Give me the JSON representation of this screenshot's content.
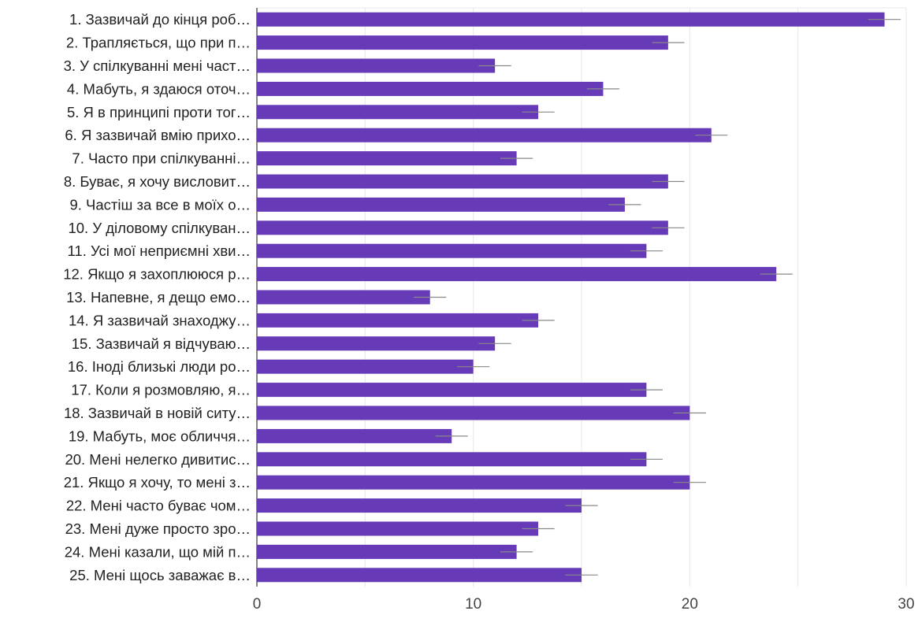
{
  "chart_data": {
    "type": "bar",
    "orientation": "horizontal",
    "categories": [
      "1. Зазвичай до кінця роб…",
      "2. Трапляється, що при п…",
      "3. У спілкуванні мені част…",
      "4. Мабуть, я здаюся оточ…",
      "5. Я в принципі проти тог…",
      "6. Я зазвичай вмію прихо…",
      "7. Часто при спілкуванні…",
      "8. Буває, я хочу висловит…",
      "9. Частіш за все в моїх о…",
      "10. У діловому спілкуван…",
      "11. Усі мої неприємні хви…",
      "12. Якщо я захоплююся р…",
      "13. Напевне, я дещо емо…",
      "14. Я зазвичай знаходжу…",
      "15. Зазвичай я відчуваю…",
      "16. Іноді близькі люди ро…",
      "17. Коли я розмовляю, я…",
      "18. Зазвичай в новій ситу…",
      "19. Мабуть, моє обличчя…",
      "20. Мені нелегко дивитис…",
      "21. Якщо я хочу, то мені з…",
      "22. Мені часто буває чом…",
      "23. Мені дуже просто зро…",
      "24. Мені казали, що мій п…",
      "25. Мені щось заважає в…"
    ],
    "values": [
      29,
      19,
      11,
      16,
      13,
      21,
      12,
      19,
      17,
      19,
      18,
      24,
      8,
      13,
      11,
      10,
      18,
      20,
      9,
      18,
      20,
      15,
      13,
      12,
      15
    ],
    "error": 0.75,
    "xlim": [
      0,
      30
    ],
    "xticks": [
      "0",
      "10",
      "20",
      "30"
    ],
    "grid": true,
    "colors": {
      "bar": "#673ab7",
      "grid": "#e8e8e8",
      "axis": "#333333",
      "error": "#888888",
      "label": "#222222",
      "tick": "#444444"
    }
  }
}
